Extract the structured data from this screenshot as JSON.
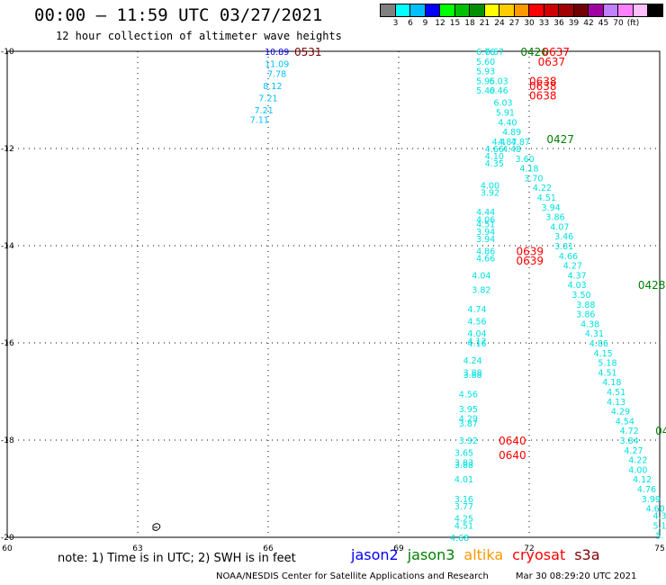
{
  "title": "00:00 – 11:59 UTC 03/27/2021",
  "subtitle": "12 hour collection of altimeter wave heights",
  "colorbar": {
    "colors": [
      "#808080",
      "#00ffff",
      "#00bfff",
      "#0000ff",
      "#00ff00",
      "#00c000",
      "#009000",
      "#ffff00",
      "#ffcc00",
      "#ff9900",
      "#ff0000",
      "#d00000",
      "#a00000",
      "#700000",
      "#a000a0",
      "#c080ff",
      "#ff80ff",
      "#ffc0ff",
      "#000000"
    ],
    "ticks": [
      "3",
      "6",
      "9",
      "12",
      "15",
      "18",
      "21",
      "24",
      "27",
      "30",
      "33",
      "36",
      "39",
      "42",
      "45",
      "70",
      "(ft)"
    ]
  },
  "note": "note:  1) Time is in UTC;  2) SWH is in feet",
  "legend": [
    {
      "label": "jason2",
      "color": "#0000ff"
    },
    {
      "label": "jason3",
      "color": "#008000"
    },
    {
      "label": "altika",
      "color": "#ff9900"
    },
    {
      "label": "cryosat",
      "color": "#ff0000"
    },
    {
      "label": "s3a",
      "color": "#800000"
    }
  ],
  "footer": {
    "credit": "NOAA/NESDIS Center for Satellite Applications and Research",
    "timestamp": "Mar 30 08:29:20 UTC 2021"
  },
  "map": {
    "lon_range": [
      60,
      75
    ],
    "lat_range": [
      -20,
      -10
    ],
    "x_ticks": [
      "60",
      "63",
      "66",
      "69",
      "72",
      "75"
    ],
    "y_ticks": [
      "-10",
      "-12",
      "-14",
      "-16",
      "-18",
      "-20"
    ],
    "time_labels": [
      {
        "text": "0531",
        "lon": 66.6,
        "lat": -10.0,
        "color": "#800000"
      },
      {
        "text": "0426",
        "lon": 71.8,
        "lat": -10.0,
        "color": "#008000"
      },
      {
        "text": "0637",
        "lon": 72.3,
        "lat": -10.0,
        "color": "#ff0000"
      },
      {
        "text": "0637",
        "lon": 72.2,
        "lat": -10.2,
        "color": "#ff0000"
      },
      {
        "text": "0638",
        "lon": 72.0,
        "lat": -10.6,
        "color": "#ff0000"
      },
      {
        "text": "0638",
        "lon": 72.0,
        "lat": -10.7,
        "color": "#ff0000"
      },
      {
        "text": "0638",
        "lon": 72.0,
        "lat": -10.9,
        "color": "#ff0000"
      },
      {
        "text": "0427",
        "lon": 72.4,
        "lat": -11.8,
        "color": "#008000"
      },
      {
        "text": "0639",
        "lon": 71.7,
        "lat": -14.1,
        "color": "#ff0000"
      },
      {
        "text": "0639",
        "lon": 71.7,
        "lat": -14.3,
        "color": "#ff0000"
      },
      {
        "text": "0428",
        "lon": 74.5,
        "lat": -14.8,
        "color": "#008000"
      },
      {
        "text": "0640",
        "lon": 71.3,
        "lat": -18.0,
        "color": "#ff0000"
      },
      {
        "text": "0640",
        "lon": 71.3,
        "lat": -18.3,
        "color": "#ff0000"
      },
      {
        "text": "04",
        "lon": 74.9,
        "lat": -17.8,
        "color": "#008000"
      }
    ],
    "tracks": [
      {
        "name": "jason2",
        "color": "#0000ff",
        "points": [
          {
            "lon": 66.2,
            "lat": -10.0,
            "v": "10.89"
          }
        ]
      },
      {
        "name": "pass-66",
        "color": "#00bfff",
        "points": [
          {
            "lon": 66.2,
            "lat": -10.25,
            "v": "11.09"
          },
          {
            "lon": 66.2,
            "lat": -10.45,
            "v": "7.78"
          },
          {
            "lon": 66.1,
            "lat": -10.7,
            "v": "8.12"
          },
          {
            "lon": 66.0,
            "lat": -10.95,
            "v": "7.21"
          },
          {
            "lon": 65.9,
            "lat": -11.2,
            "v": "7.21"
          },
          {
            "lon": 65.8,
            "lat": -11.4,
            "v": "7.11"
          }
        ]
      },
      {
        "name": "pass-71a",
        "color": "#00e0e0",
        "points": [
          {
            "lon": 71.0,
            "lat": -10.0,
            "v": "6.76"
          },
          {
            "lon": 71.0,
            "lat": -10.2,
            "v": "5.60"
          },
          {
            "lon": 71.0,
            "lat": -10.4,
            "v": "5.93"
          },
          {
            "lon": 71.0,
            "lat": -10.6,
            "v": "5.95"
          },
          {
            "lon": 71.0,
            "lat": -10.8,
            "v": "5.40"
          },
          {
            "lon": 71.4,
            "lat": -11.05,
            "v": "6.03"
          },
          {
            "lon": 71.45,
            "lat": -11.25,
            "v": "5.91"
          },
          {
            "lon": 71.5,
            "lat": -11.45,
            "v": "4.40"
          },
          {
            "lon": 71.6,
            "lat": -11.65,
            "v": "4.89"
          },
          {
            "lon": 71.5,
            "lat": -11.85,
            "v": "4.87"
          },
          {
            "lon": 71.8,
            "lat": -11.85,
            "v": "4.87"
          },
          {
            "lon": 71.6,
            "lat": -12.0,
            "v": "4.48"
          },
          {
            "lon": 71.9,
            "lat": -12.2,
            "v": "3.60"
          },
          {
            "lon": 72.0,
            "lat": -12.4,
            "v": "4.18"
          },
          {
            "lon": 72.1,
            "lat": -12.6,
            "v": "3.70"
          },
          {
            "lon": 72.3,
            "lat": -12.8,
            "v": "4.22"
          },
          {
            "lon": 72.4,
            "lat": -13.0,
            "v": "4.51"
          },
          {
            "lon": 72.5,
            "lat": -13.2,
            "v": "3.94"
          },
          {
            "lon": 72.6,
            "lat": -13.4,
            "v": "3.86"
          },
          {
            "lon": 72.7,
            "lat": -13.6,
            "v": "4.07"
          },
          {
            "lon": 72.8,
            "lat": -13.8,
            "v": "3.46"
          },
          {
            "lon": 72.8,
            "lat": -14.0,
            "v": "3.81"
          },
          {
            "lon": 72.9,
            "lat": -14.2,
            "v": "4.66"
          },
          {
            "lon": 73.0,
            "lat": -14.4,
            "v": "4.27"
          },
          {
            "lon": 73.1,
            "lat": -14.6,
            "v": "4.37"
          },
          {
            "lon": 73.1,
            "lat": -14.8,
            "v": "4.03"
          },
          {
            "lon": 73.2,
            "lat": -15.0,
            "v": "3.50"
          },
          {
            "lon": 73.3,
            "lat": -15.2,
            "v": "3.88"
          },
          {
            "lon": 73.3,
            "lat": -15.4,
            "v": "3.86"
          },
          {
            "lon": 73.4,
            "lat": -15.6,
            "v": "4.38"
          },
          {
            "lon": 73.5,
            "lat": -15.8,
            "v": "4.31"
          },
          {
            "lon": 73.6,
            "lat": -16.0,
            "v": "4.86"
          },
          {
            "lon": 73.7,
            "lat": -16.2,
            "v": "4.15"
          },
          {
            "lon": 73.8,
            "lat": -16.4,
            "v": "5.18"
          },
          {
            "lon": 73.8,
            "lat": -16.6,
            "v": "4.51"
          },
          {
            "lon": 73.9,
            "lat": -16.8,
            "v": "4.18"
          },
          {
            "lon": 74.0,
            "lat": -17.0,
            "v": "4.51"
          },
          {
            "lon": 74.0,
            "lat": -17.2,
            "v": "4.13"
          },
          {
            "lon": 74.1,
            "lat": -17.4,
            "v": "4.29"
          },
          {
            "lon": 74.2,
            "lat": -17.6,
            "v": "4.54"
          },
          {
            "lon": 74.3,
            "lat": -17.8,
            "v": "4.72"
          },
          {
            "lon": 74.3,
            "lat": -18.0,
            "v": "3.84"
          },
          {
            "lon": 74.4,
            "lat": -18.2,
            "v": "4.27"
          },
          {
            "lon": 74.5,
            "lat": -18.4,
            "v": "4.22"
          },
          {
            "lon": 74.5,
            "lat": -18.6,
            "v": "4.00"
          },
          {
            "lon": 74.6,
            "lat": -18.8,
            "v": "4.12"
          },
          {
            "lon": 74.7,
            "lat": -19.0,
            "v": "4.76"
          },
          {
            "lon": 74.8,
            "lat": -19.2,
            "v": "3.99"
          },
          {
            "lon": 74.9,
            "lat": -19.4,
            "v": "4.60"
          },
          {
            "lon": 75.0,
            "lat": -19.55,
            "v": "4.3"
          },
          {
            "lon": 75.0,
            "lat": -19.75,
            "v": "5.1"
          },
          {
            "lon": 75.0,
            "lat": -19.95,
            "v": "5."
          }
        ]
      },
      {
        "name": "pass-71b",
        "color": "#00e0e0",
        "points": [
          {
            "lon": 71.2,
            "lat": -10.0,
            "v": "6.67"
          },
          {
            "lon": 71.3,
            "lat": -10.6,
            "v": "6.03"
          },
          {
            "lon": 71.3,
            "lat": -10.8,
            "v": "6.46"
          },
          {
            "lon": 71.3,
            "lat": -11.85,
            "v": "4.4"
          },
          {
            "lon": 71.2,
            "lat": -12.0,
            "v": "4.66"
          },
          {
            "lon": 71.2,
            "lat": -12.15,
            "v": "4.10"
          },
          {
            "lon": 71.2,
            "lat": -12.3,
            "v": "4.35"
          },
          {
            "lon": 71.1,
            "lat": -12.75,
            "v": "4.00"
          },
          {
            "lon": 71.1,
            "lat": -12.9,
            "v": "3.92"
          },
          {
            "lon": 71.0,
            "lat": -13.3,
            "v": "4.44"
          },
          {
            "lon": 71.0,
            "lat": -13.45,
            "v": "4.06"
          },
          {
            "lon": 71.0,
            "lat": -13.55,
            "v": "4.51"
          },
          {
            "lon": 71.0,
            "lat": -13.7,
            "v": "3.94"
          },
          {
            "lon": 71.0,
            "lat": -13.85,
            "v": "3.94"
          },
          {
            "lon": 71.0,
            "lat": -14.1,
            "v": "4.86"
          },
          {
            "lon": 71.0,
            "lat": -14.25,
            "v": "4.66"
          },
          {
            "lon": 70.9,
            "lat": -14.6,
            "v": "4.04"
          },
          {
            "lon": 70.9,
            "lat": -14.9,
            "v": "3.82"
          },
          {
            "lon": 70.8,
            "lat": -15.3,
            "v": "4.74"
          },
          {
            "lon": 70.8,
            "lat": -15.55,
            "v": "4.56"
          },
          {
            "lon": 70.8,
            "lat": -15.8,
            "v": "4.04"
          },
          {
            "lon": 70.8,
            "lat": -15.95,
            "v": "4.12"
          },
          {
            "lon": 70.8,
            "lat": -16.0,
            "v": "4.16"
          },
          {
            "lon": 70.7,
            "lat": -16.35,
            "v": "4.24"
          },
          {
            "lon": 70.7,
            "lat": -16.6,
            "v": "3.88"
          },
          {
            "lon": 70.7,
            "lat": -16.65,
            "v": "3.88"
          },
          {
            "lon": 70.6,
            "lat": -17.05,
            "v": "4.56"
          },
          {
            "lon": 70.6,
            "lat": -17.35,
            "v": "3.95"
          },
          {
            "lon": 70.6,
            "lat": -17.55,
            "v": "4.29"
          },
          {
            "lon": 70.6,
            "lat": -17.65,
            "v": "3.87"
          },
          {
            "lon": 70.6,
            "lat": -18.0,
            "v": "3.92"
          },
          {
            "lon": 70.5,
            "lat": -18.25,
            "v": "3.65"
          },
          {
            "lon": 70.5,
            "lat": -18.45,
            "v": "3.83"
          },
          {
            "lon": 70.5,
            "lat": -18.5,
            "v": "3.88"
          },
          {
            "lon": 70.5,
            "lat": -18.8,
            "v": "4.01"
          },
          {
            "lon": 70.5,
            "lat": -19.2,
            "v": "3.16"
          },
          {
            "lon": 70.5,
            "lat": -19.35,
            "v": "3.77"
          },
          {
            "lon": 70.5,
            "lat": -19.6,
            "v": "4.25"
          },
          {
            "lon": 70.5,
            "lat": -19.75,
            "v": "4.51"
          },
          {
            "lon": 70.4,
            "lat": -20.0,
            "v": "4.68"
          }
        ]
      }
    ]
  }
}
